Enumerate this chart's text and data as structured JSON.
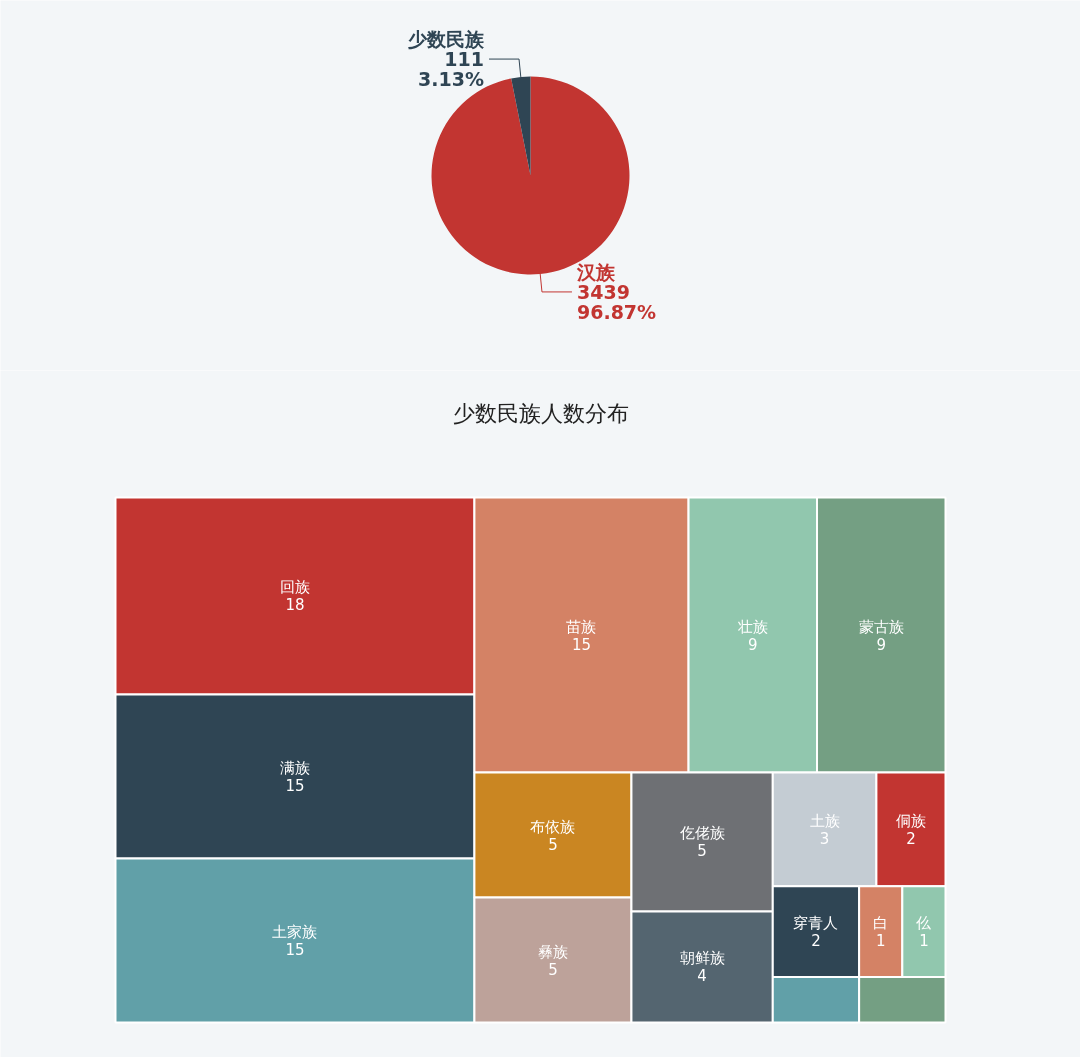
{
  "chart_data": [
    {
      "type": "pie",
      "categories": [
        "汉族",
        "少数民族"
      ],
      "values": [
        3439,
        111
      ],
      "value_labels": [
        "3439\n96.87%",
        "111\n3.13%"
      ],
      "colors": [
        "#c23531",
        "#2f4554"
      ]
    },
    {
      "type": "other",
      "title": "少数民族人数分布",
      "categories": [
        "回族",
        "满族",
        "土家族",
        "苗族",
        "壮族",
        "蒙古族",
        "布依族",
        "彝族",
        "仡佬族",
        "朝鲜族",
        "土族",
        "侗族",
        "穿青人",
        null,
        "白",
        "仫",
        null
      ],
      "values": [
        18,
        15,
        15,
        15,
        9,
        9,
        5,
        5,
        5,
        4,
        3,
        2,
        2,
        null,
        1,
        1,
        null
      ],
      "colors": [
        "#c23531",
        "#2f4554",
        "#61a0a8",
        "#d48265",
        "#91c7ae",
        "#749f83",
        "#ca8622",
        "#bda29a",
        "#6e7074",
        "#546570",
        "#c4ccd3",
        "#c23531",
        "#2f4554",
        "#61a0a8",
        "#d48265",
        "#91c7ae",
        "#749f83"
      ],
      "data_labels": true
    }
  ]
}
